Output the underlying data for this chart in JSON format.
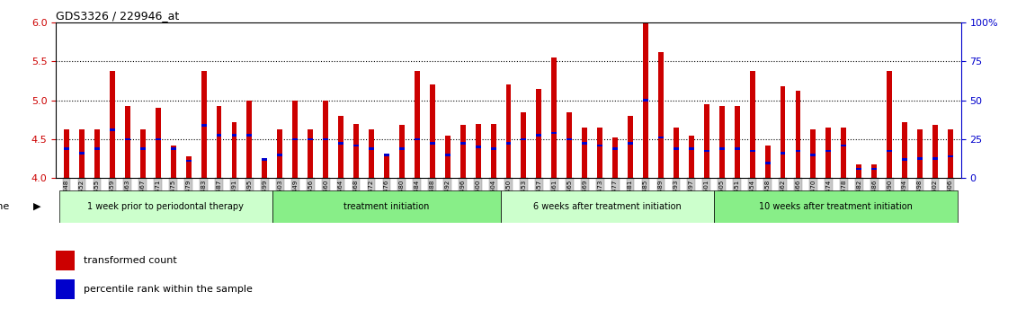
{
  "title": "GDS3326 / 229946_at",
  "ylim": [
    4.0,
    6.0
  ],
  "yticks": [
    4.0,
    4.5,
    5.0,
    5.5,
    6.0
  ],
  "ytick_color": "#cc0000",
  "right_yticks": [
    0,
    25,
    50,
    75,
    100
  ],
  "right_ytick_labels": [
    "0",
    "25",
    "50",
    "75",
    "100%"
  ],
  "right_ytick_color": "#0000cc",
  "groups": [
    {
      "label": "1 week prior to periodontal therapy",
      "start": 0,
      "end": 14
    },
    {
      "label": "treatment initiation",
      "start": 14,
      "end": 29
    },
    {
      "label": "6 weeks after treatment initiation",
      "start": 29,
      "end": 43
    },
    {
      "label": "10 weeks after treatment initiation",
      "start": 43,
      "end": 59
    }
  ],
  "group_colors_alt": [
    "#ccffcc",
    "#99ee99"
  ],
  "samples": [
    "GSM155448",
    "GSM155452",
    "GSM155455",
    "GSM155459",
    "GSM155463",
    "GSM155467",
    "GSM155471",
    "GSM155475",
    "GSM155479",
    "GSM155483",
    "GSM155487",
    "GSM155491",
    "GSM155495",
    "GSM155499",
    "GSM155503",
    "GSM155449",
    "GSM155456",
    "GSM155460",
    "GSM155464",
    "GSM155468",
    "GSM155472",
    "GSM155476",
    "GSM155480",
    "GSM155484",
    "GSM155488",
    "GSM155492",
    "GSM155496",
    "GSM155500",
    "GSM155504",
    "GSM155450",
    "GSM155453",
    "GSM155457",
    "GSM155461",
    "GSM155465",
    "GSM155469",
    "GSM155473",
    "GSM155477",
    "GSM155481",
    "GSM155485",
    "GSM155489",
    "GSM155493",
    "GSM155497",
    "GSM155501",
    "GSM155505",
    "GSM155451",
    "GSM155454",
    "GSM155458",
    "GSM155462",
    "GSM155466",
    "GSM155470",
    "GSM155474",
    "GSM155478",
    "GSM155482",
    "GSM155486",
    "GSM155490",
    "GSM155494",
    "GSM155498",
    "GSM155502",
    "GSM155506"
  ],
  "red_values": [
    4.62,
    4.62,
    4.62,
    5.38,
    4.92,
    4.62,
    4.9,
    4.42,
    4.28,
    5.38,
    4.92,
    4.72,
    5.0,
    4.25,
    4.62,
    5.0,
    4.62,
    5.0,
    4.8,
    4.7,
    4.62,
    4.3,
    4.68,
    5.38,
    5.2,
    4.55,
    4.68,
    4.7,
    4.7,
    5.2,
    4.85,
    5.15,
    5.55,
    4.85,
    4.65,
    4.65,
    4.52,
    4.8,
    6.05,
    5.62,
    4.65,
    4.55,
    4.95,
    4.92,
    4.92,
    5.38,
    4.42,
    5.18,
    5.12,
    4.62,
    4.65,
    4.65,
    4.18,
    4.18,
    5.38,
    4.72,
    4.62,
    4.68,
    4.62
  ],
  "blue_values": [
    4.38,
    4.32,
    4.38,
    4.62,
    4.5,
    4.38,
    4.5,
    4.38,
    4.22,
    4.68,
    4.55,
    4.55,
    4.55,
    4.24,
    4.3,
    4.5,
    4.5,
    4.5,
    4.45,
    4.42,
    4.38,
    4.3,
    4.38,
    4.5,
    4.45,
    4.3,
    4.45,
    4.4,
    4.38,
    4.45,
    4.5,
    4.55,
    4.58,
    4.5,
    4.45,
    4.42,
    4.38,
    4.45,
    5.0,
    4.52,
    4.38,
    4.38,
    4.35,
    4.38,
    4.38,
    4.35,
    4.19,
    4.32,
    4.35,
    4.3,
    4.35,
    4.42,
    4.12,
    4.12,
    4.35,
    4.24,
    4.25,
    4.25,
    4.28
  ],
  "bar_color": "#cc0000",
  "blue_color": "#0000cc",
  "bg_color": "#ffffff"
}
